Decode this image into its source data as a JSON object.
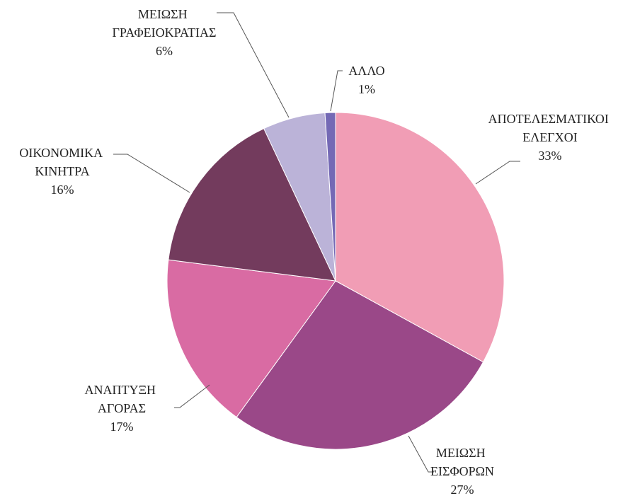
{
  "chart_data": {
    "type": "pie",
    "categories": [
      "ΑΠΟΤΕΛΕΣΜΑΤΙΚΟΙ ΕΛΕΓΧΟΙ",
      "ΜΕΙΩΣΗ ΕΙΣΦΟΡΩΝ",
      "ΑΝΑΠΤΥΞΗ ΑΓΟΡΑΣ",
      "ΟΙΚΟΝΟΜΙΚΑ ΚΙΝΗΤΡΑ",
      "ΜΕΙΩΣΗ ΓΡΑΦΕΙΟΚΡΑΤΙΑΣ",
      "ΑΛΛΟ"
    ],
    "values": [
      33,
      27,
      17,
      16,
      6,
      1
    ],
    "value_labels": [
      "33%",
      "27%",
      "17%",
      "16%",
      "6%",
      "1%"
    ],
    "colors": [
      "#f19db5",
      "#9a4888",
      "#d96ba3",
      "#733b5d",
      "#bbb3d8",
      "#7469b5"
    ]
  }
}
